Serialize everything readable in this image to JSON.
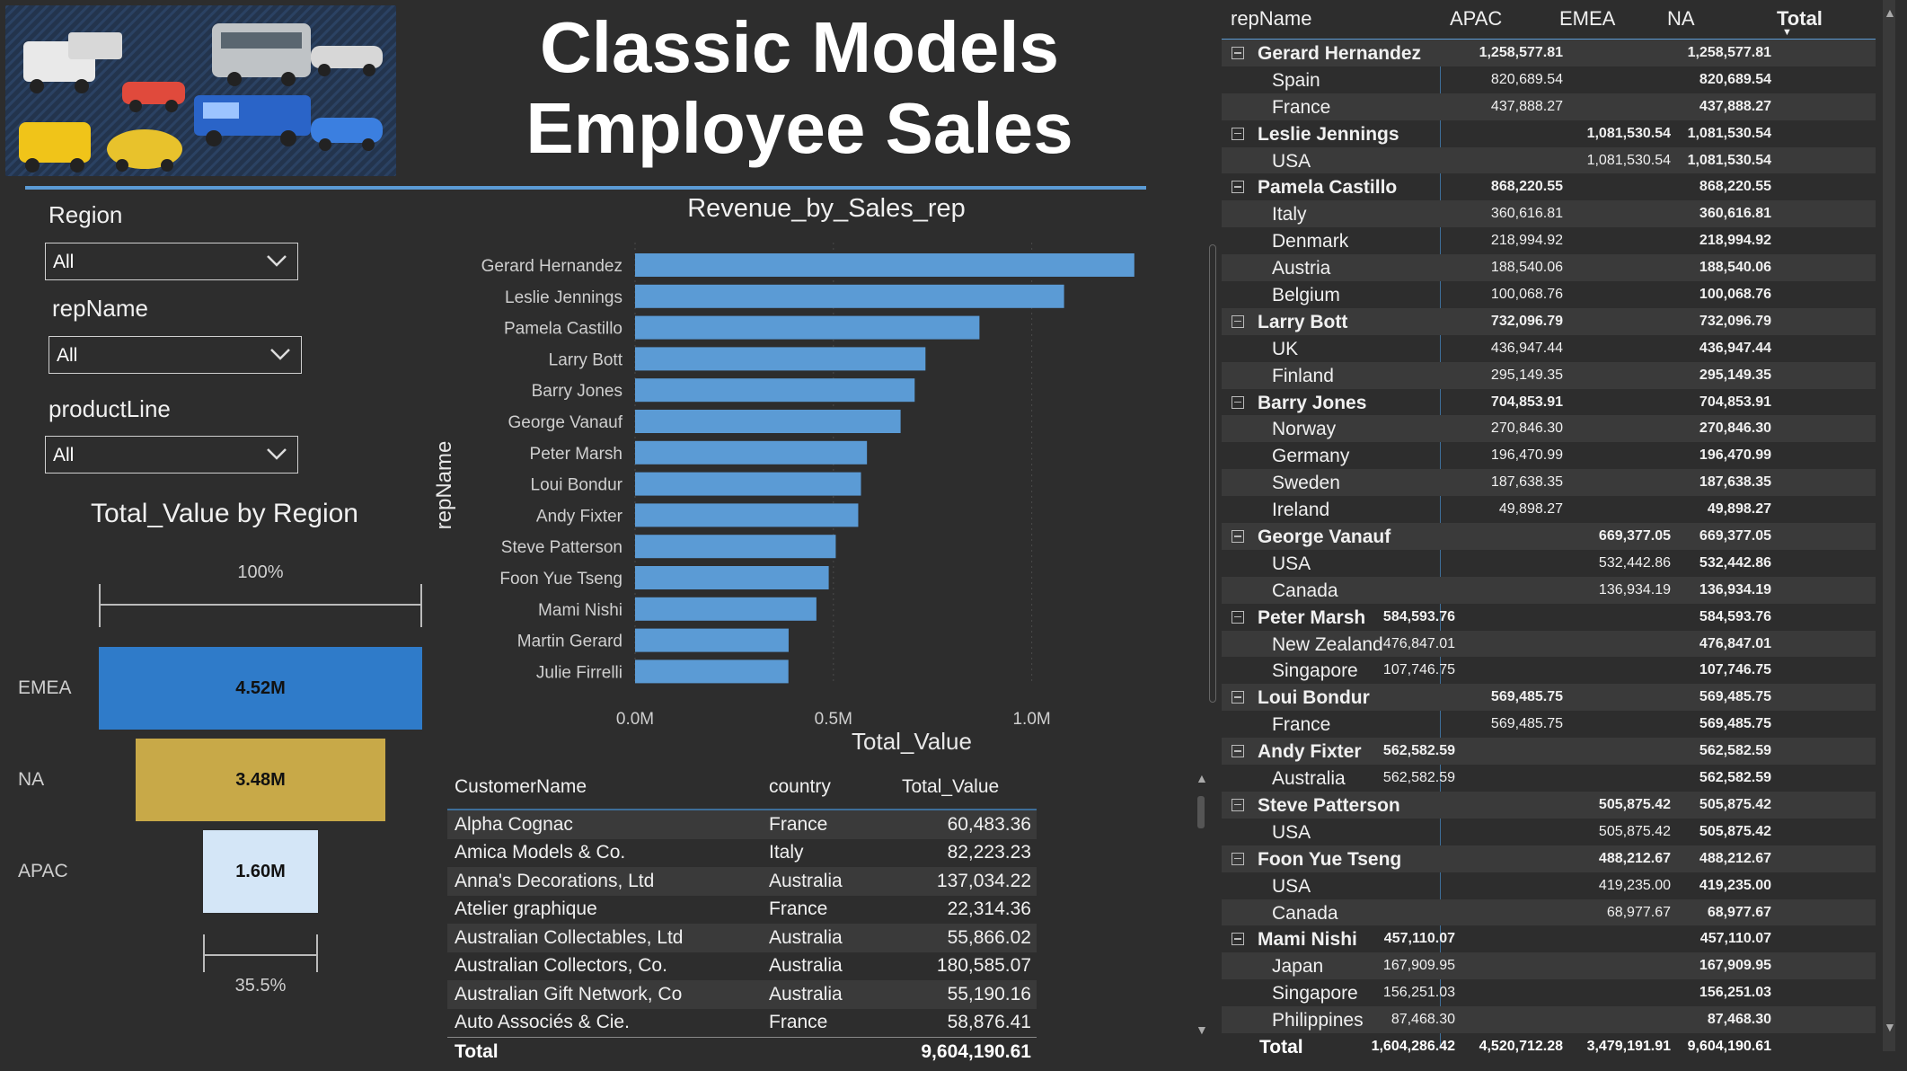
{
  "title": "Classic Models Employee Sales",
  "slicers": [
    {
      "label": "Region",
      "value": "All"
    },
    {
      "label": "repName",
      "value": "All"
    },
    {
      "label": "productLine",
      "value": "All"
    }
  ],
  "funnel": {
    "title": "Total_Value by Region",
    "top_pct": "100%",
    "bottom_pct": "35.5%",
    "stages": [
      {
        "label": "EMEA",
        "value_label": "4.52M",
        "value": 4.52,
        "color": "#2f7bc9"
      },
      {
        "label": "NA",
        "value_label": "3.48M",
        "value": 3.48,
        "color": "#c8a948"
      },
      {
        "label": "APAC",
        "value_label": "1.60M",
        "value": 1.6,
        "color": "#d4e6f7"
      }
    ]
  },
  "chart_data": {
    "type": "bar",
    "orientation": "horizontal",
    "title": "Revenue_by_Sales_rep",
    "xlabel": "Total_Value",
    "ylabel": "repName",
    "xlim": [
      0,
      1.25
    ],
    "xticks": [
      "0.0M",
      "0.5M",
      "1.0M"
    ],
    "color": "#5b9bd5",
    "categories": [
      "Gerard Hernandez",
      "Leslie Jennings",
      "Pamela Castillo",
      "Larry Bott",
      "Barry Jones",
      "George Vanauf",
      "Peter Marsh",
      "Loui Bondur",
      "Andy Fixter",
      "Steve Patterson",
      "Foon Yue Tseng",
      "Mami Nishi",
      "Martin Gerard",
      "Julie Firrelli"
    ],
    "values": [
      1.2586,
      1.0815,
      0.8682,
      0.7321,
      0.7049,
      0.6694,
      0.5846,
      0.5695,
      0.5626,
      0.5059,
      0.4882,
      0.4571,
      0.3871,
      0.3866
    ]
  },
  "customer_table": {
    "headers": [
      "CustomerName",
      "country",
      "Total_Value"
    ],
    "rows": [
      [
        "Alpha Cognac",
        "France",
        "60,483.36"
      ],
      [
        "Amica Models & Co.",
        "Italy",
        "82,223.23"
      ],
      [
        "Anna's Decorations, Ltd",
        "Australia",
        "137,034.22"
      ],
      [
        "Atelier graphique",
        "France",
        "22,314.36"
      ],
      [
        "Australian Collectables, Ltd",
        "Australia",
        "55,866.02"
      ],
      [
        "Australian Collectors, Co.",
        "Australia",
        "180,585.07"
      ],
      [
        "Australian Gift Network, Co",
        "Australia",
        "55,190.16"
      ],
      [
        "Auto Associés & Cie.",
        "France",
        "58,876.41"
      ]
    ],
    "total_label": "Total",
    "total_value": "9,604,190.61"
  },
  "matrix": {
    "headers": [
      "repName",
      "APAC",
      "EMEA",
      "NA",
      "Total"
    ],
    "groups": [
      {
        "name": "Gerard Hernandez",
        "apac": "",
        "emea": "1,258,577.81",
        "na": "",
        "total": "1,258,577.81",
        "children": [
          [
            "Spain",
            "",
            "820,689.54",
            "",
            "820,689.54"
          ],
          [
            "France",
            "",
            "437,888.27",
            "",
            "437,888.27"
          ]
        ]
      },
      {
        "name": "Leslie Jennings",
        "apac": "",
        "emea": "",
        "na": "1,081,530.54",
        "total": "1,081,530.54",
        "children": [
          [
            "USA",
            "",
            "",
            "1,081,530.54",
            "1,081,530.54"
          ]
        ]
      },
      {
        "name": "Pamela Castillo",
        "apac": "",
        "emea": "868,220.55",
        "na": "",
        "total": "868,220.55",
        "children": [
          [
            "Italy",
            "",
            "360,616.81",
            "",
            "360,616.81"
          ],
          [
            "Denmark",
            "",
            "218,994.92",
            "",
            "218,994.92"
          ],
          [
            "Austria",
            "",
            "188,540.06",
            "",
            "188,540.06"
          ],
          [
            "Belgium",
            "",
            "100,068.76",
            "",
            "100,068.76"
          ]
        ]
      },
      {
        "name": "Larry Bott",
        "apac": "",
        "emea": "732,096.79",
        "na": "",
        "total": "732,096.79",
        "children": [
          [
            "UK",
            "",
            "436,947.44",
            "",
            "436,947.44"
          ],
          [
            "Finland",
            "",
            "295,149.35",
            "",
            "295,149.35"
          ]
        ]
      },
      {
        "name": "Barry Jones",
        "apac": "",
        "emea": "704,853.91",
        "na": "",
        "total": "704,853.91",
        "children": [
          [
            "Norway",
            "",
            "270,846.30",
            "",
            "270,846.30"
          ],
          [
            "Germany",
            "",
            "196,470.99",
            "",
            "196,470.99"
          ],
          [
            "Sweden",
            "",
            "187,638.35",
            "",
            "187,638.35"
          ],
          [
            "Ireland",
            "",
            "49,898.27",
            "",
            "49,898.27"
          ]
        ]
      },
      {
        "name": "George Vanauf",
        "apac": "",
        "emea": "",
        "na": "669,377.05",
        "total": "669,377.05",
        "children": [
          [
            "USA",
            "",
            "",
            "532,442.86",
            "532,442.86"
          ],
          [
            "Canada",
            "",
            "",
            "136,934.19",
            "136,934.19"
          ]
        ]
      },
      {
        "name": "Peter Marsh",
        "apac": "584,593.76",
        "emea": "",
        "na": "",
        "total": "584,593.76",
        "children": [
          [
            "New Zealand",
            "476,847.01",
            "",
            "",
            "476,847.01"
          ],
          [
            "Singapore",
            "107,746.75",
            "",
            "",
            "107,746.75"
          ]
        ]
      },
      {
        "name": "Loui Bondur",
        "apac": "",
        "emea": "569,485.75",
        "na": "",
        "total": "569,485.75",
        "children": [
          [
            "France",
            "",
            "569,485.75",
            "",
            "569,485.75"
          ]
        ]
      },
      {
        "name": "Andy Fixter",
        "apac": "562,582.59",
        "emea": "",
        "na": "",
        "total": "562,582.59",
        "children": [
          [
            "Australia",
            "562,582.59",
            "",
            "",
            "562,582.59"
          ]
        ]
      },
      {
        "name": "Steve Patterson",
        "apac": "",
        "emea": "",
        "na": "505,875.42",
        "total": "505,875.42",
        "children": [
          [
            "USA",
            "",
            "",
            "505,875.42",
            "505,875.42"
          ]
        ]
      },
      {
        "name": "Foon Yue Tseng",
        "apac": "",
        "emea": "",
        "na": "488,212.67",
        "total": "488,212.67",
        "children": [
          [
            "USA",
            "",
            "",
            "419,235.00",
            "419,235.00"
          ],
          [
            "Canada",
            "",
            "",
            "68,977.67",
            "68,977.67"
          ]
        ]
      },
      {
        "name": "Mami Nishi",
        "apac": "457,110.07",
        "emea": "",
        "na": "",
        "total": "457,110.07",
        "children": [
          [
            "Japan",
            "167,909.95",
            "",
            "",
            "167,909.95"
          ],
          [
            "Singapore",
            "156,251.03",
            "",
            "",
            "156,251.03"
          ],
          [
            "Philippines",
            "87,468.30",
            "",
            "",
            "87,468.30"
          ]
        ]
      }
    ],
    "total": {
      "label": "Total",
      "apac": "1,604,286.42",
      "emea": "4,520,712.28",
      "na": "3,479,191.91",
      "total": "9,604,190.61"
    }
  }
}
